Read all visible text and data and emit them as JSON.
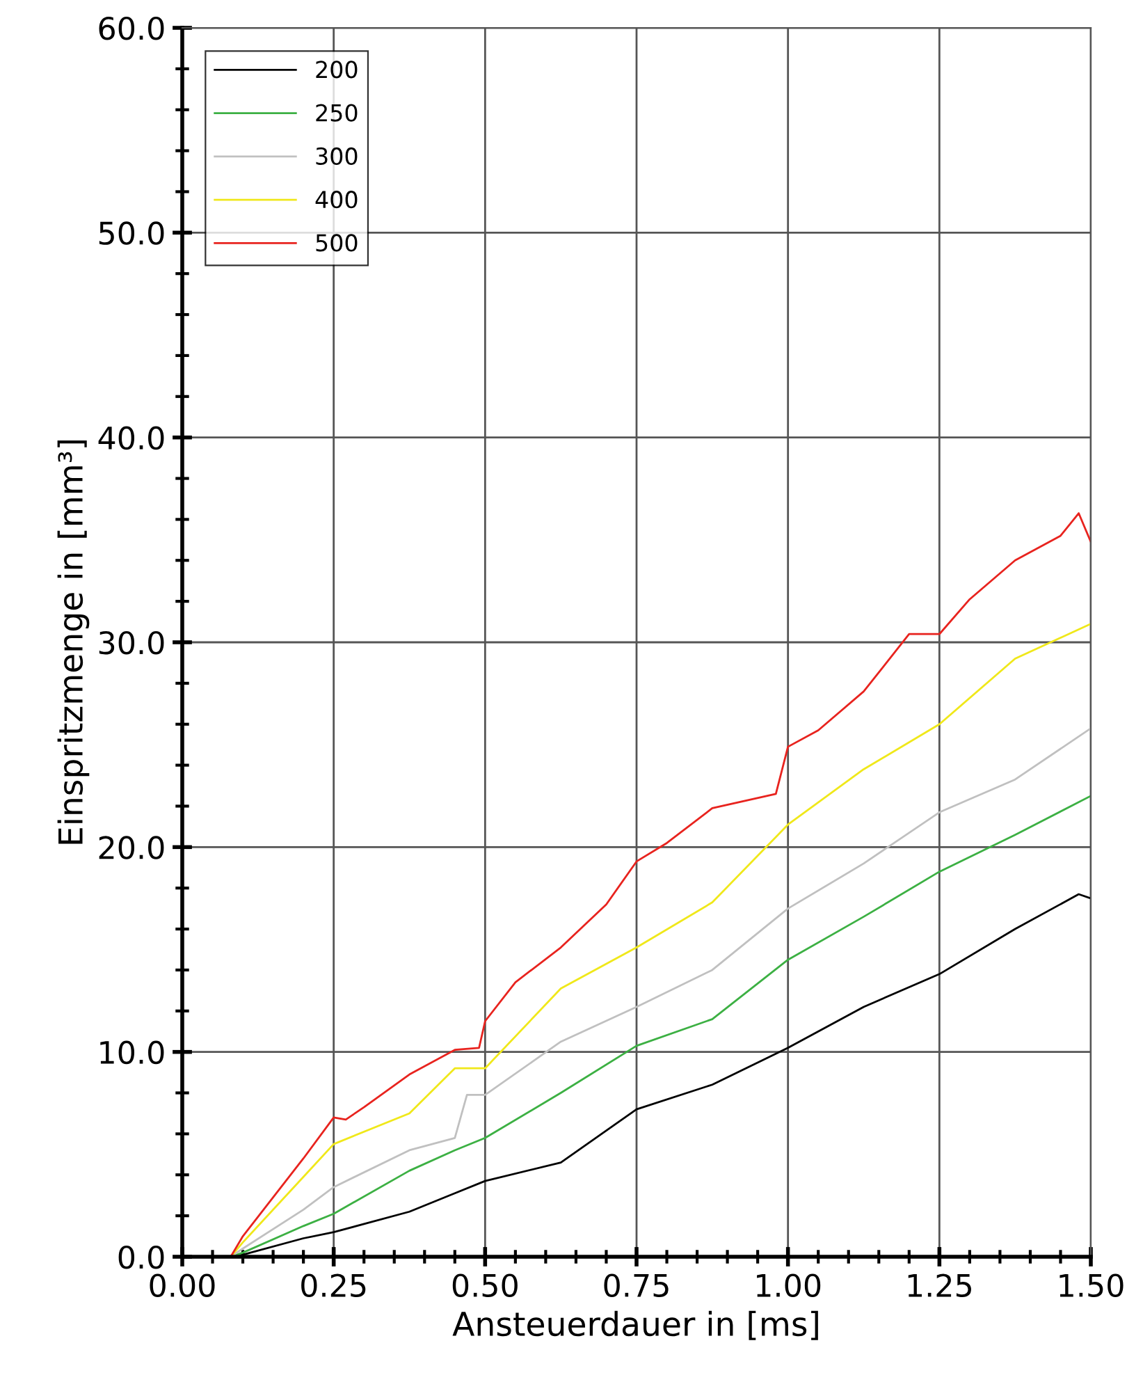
{
  "chart_data": {
    "type": "line",
    "xlabel": "Ansteuerdauer in [ms]",
    "ylabel": "Einspritzmenge in [mm³]",
    "xlim": [
      0,
      1.5
    ],
    "ylim": [
      0,
      60
    ],
    "xticks": [
      {
        "value": 0,
        "label": "0.00"
      },
      {
        "value": 0.25,
        "label": "0.25"
      },
      {
        "value": 0.5,
        "label": "0.50"
      },
      {
        "value": 0.75,
        "label": "0.75"
      },
      {
        "value": 1.0,
        "label": "1.00"
      },
      {
        "value": 1.25,
        "label": "1.25"
      },
      {
        "value": 1.5,
        "label": "1.50"
      }
    ],
    "yticks": [
      {
        "value": 0,
        "label": "0.0"
      },
      {
        "value": 10,
        "label": "10.0"
      },
      {
        "value": 20,
        "label": "20.0"
      },
      {
        "value": 30,
        "label": "30.0"
      },
      {
        "value": 40,
        "label": "40.0"
      },
      {
        "value": 50,
        "label": "50.0"
      },
      {
        "value": 60,
        "label": "60.0"
      }
    ],
    "grid": true,
    "legend": "top left",
    "marker": "none",
    "line_style": "solid",
    "series": [
      {
        "name": "200",
        "color": "#000000",
        "x": [
          0,
          0.08,
          0.1,
          0.2,
          0.25,
          0.375,
          0.45,
          0.5,
          0.625,
          0.75,
          0.875,
          1.0,
          1.125,
          1.25,
          1.375,
          1.48,
          1.5
        ],
        "values": [
          0,
          0,
          0.1,
          0.9,
          1.2,
          2.2,
          3.1,
          3.7,
          4.6,
          7.2,
          8.4,
          10.2,
          12.2,
          13.8,
          16.0,
          17.7,
          17.5
        ]
      },
      {
        "name": "250",
        "color": "#3cb043",
        "x": [
          0,
          0.08,
          0.1,
          0.2,
          0.25,
          0.375,
          0.45,
          0.5,
          0.625,
          0.75,
          0.875,
          1.0,
          1.125,
          1.25,
          1.375,
          1.5
        ],
        "values": [
          0,
          0,
          0.2,
          1.5,
          2.1,
          4.2,
          5.2,
          5.8,
          8.0,
          10.3,
          11.6,
          14.5,
          16.6,
          18.8,
          20.6,
          22.5
        ]
      },
      {
        "name": "300",
        "color": "#c0c0c0",
        "x": [
          0,
          0.08,
          0.1,
          0.2,
          0.25,
          0.375,
          0.45,
          0.47,
          0.5,
          0.625,
          0.75,
          0.875,
          1.0,
          1.125,
          1.25,
          1.375,
          1.5
        ],
        "values": [
          0,
          0,
          0.4,
          2.3,
          3.4,
          5.2,
          5.8,
          7.9,
          7.9,
          10.5,
          12.2,
          14.0,
          17.0,
          19.2,
          21.7,
          23.3,
          25.8
        ]
      },
      {
        "name": "400",
        "color": "#f0e81a",
        "x": [
          0,
          0.08,
          0.1,
          0.2,
          0.25,
          0.375,
          0.45,
          0.5,
          0.625,
          0.75,
          0.875,
          1.0,
          1.125,
          1.25,
          1.375,
          1.5
        ],
        "values": [
          0,
          0,
          0.7,
          3.9,
          5.5,
          7.0,
          9.2,
          9.2,
          13.1,
          15.1,
          17.3,
          21.1,
          23.8,
          26.0,
          29.2,
          30.9
        ]
      },
      {
        "name": "500",
        "color": "#e8231e",
        "x": [
          0,
          0.08,
          0.1,
          0.15,
          0.2,
          0.25,
          0.27,
          0.3,
          0.375,
          0.45,
          0.49,
          0.5,
          0.55,
          0.625,
          0.7,
          0.75,
          0.8,
          0.875,
          0.98,
          1.0,
          1.05,
          1.125,
          1.2,
          1.25,
          1.3,
          1.375,
          1.45,
          1.48,
          1.5
        ],
        "values": [
          0,
          0,
          1.0,
          2.9,
          4.8,
          6.8,
          6.7,
          7.3,
          8.9,
          10.1,
          10.2,
          11.5,
          13.4,
          15.1,
          17.2,
          19.3,
          20.2,
          21.9,
          22.6,
          24.9,
          25.7,
          27.6,
          30.4,
          30.4,
          32.1,
          34.0,
          35.2,
          36.3,
          34.9
        ]
      }
    ]
  }
}
